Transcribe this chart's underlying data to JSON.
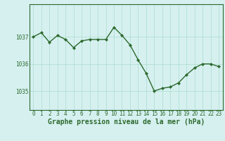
{
  "x": [
    0,
    1,
    2,
    3,
    4,
    5,
    6,
    7,
    8,
    9,
    10,
    11,
    12,
    13,
    14,
    15,
    16,
    17,
    18,
    19,
    20,
    21,
    22,
    23
  ],
  "y": [
    1037.0,
    1037.15,
    1036.8,
    1037.05,
    1036.9,
    1036.6,
    1036.85,
    1036.9,
    1036.9,
    1036.9,
    1037.35,
    1037.05,
    1036.7,
    1036.15,
    1035.65,
    1035.0,
    1035.1,
    1035.15,
    1035.3,
    1035.6,
    1035.85,
    1036.0,
    1036.0,
    1035.9
  ],
  "line_color": "#2d6a2d",
  "marker": "D",
  "marker_size": 2,
  "line_width": 1.0,
  "bg_color": "#d6f0f0",
  "grid_color": "#aaddcc",
  "xlabel": "Graphe pression niveau de la mer (hPa)",
  "xlabel_color": "#2d6a2d",
  "xlabel_fontsize": 7,
  "tick_color": "#2d6a2d",
  "tick_fontsize": 5.5,
  "ytick_labels": [
    1035,
    1036,
    1037
  ],
  "ylim": [
    1034.3,
    1038.2
  ],
  "xlim": [
    -0.5,
    23.5
  ],
  "border_color": "#2d6a2d"
}
